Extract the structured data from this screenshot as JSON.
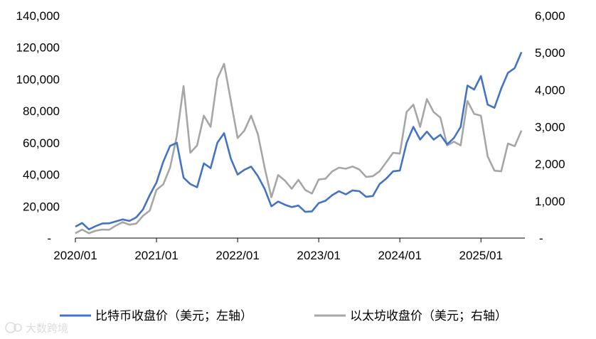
{
  "chart_data": {
    "type": "line",
    "title": "",
    "xlabel": "",
    "ylabel": "",
    "x_tick_labels": [
      "2020/01",
      "2021/01",
      "2022/01",
      "2023/01",
      "2024/01",
      "2025/01"
    ],
    "y_left": {
      "ylim": [
        0,
        140000
      ],
      "tick_labels": [
        "-",
        "20,000",
        "40,000",
        "60,000",
        "80,000",
        "100,000",
        "120,000",
        "140,000"
      ]
    },
    "y_right": {
      "ylim": [
        0,
        6000
      ],
      "tick_labels": [
        "-",
        "1,000",
        "2,000",
        "3,000",
        "4,000",
        "5,000",
        "6,000"
      ]
    },
    "grid": false,
    "legend_position": "bottom",
    "series": [
      {
        "name": "比特币收盘价（美元；左轴）",
        "axis": "left",
        "color": "#4472c4",
        "points": [
          [
            "2020-01",
            7200
          ],
          [
            "2020-02",
            9500
          ],
          [
            "2020-03",
            5500
          ],
          [
            "2020-04",
            7500
          ],
          [
            "2020-05",
            9200
          ],
          [
            "2020-06",
            9300
          ],
          [
            "2020-07",
            10500
          ],
          [
            "2020-08",
            11700
          ],
          [
            "2020-09",
            10800
          ],
          [
            "2020-10",
            13000
          ],
          [
            "2020-11",
            18000
          ],
          [
            "2020-12",
            27000
          ],
          [
            "2021-01",
            35000
          ],
          [
            "2021-02",
            48000
          ],
          [
            "2021-03",
            58000
          ],
          [
            "2021-04",
            60000
          ],
          [
            "2021-05",
            38000
          ],
          [
            "2021-06",
            34000
          ],
          [
            "2021-07",
            32000
          ],
          [
            "2021-08",
            47000
          ],
          [
            "2021-09",
            44000
          ],
          [
            "2021-10",
            60000
          ],
          [
            "2021-11",
            66000
          ],
          [
            "2021-12",
            50000
          ],
          [
            "2022-01",
            40000
          ],
          [
            "2022-02",
            43000
          ],
          [
            "2022-03",
            45000
          ],
          [
            "2022-04",
            39000
          ],
          [
            "2022-05",
            31000
          ],
          [
            "2022-06",
            20000
          ],
          [
            "2022-07",
            23000
          ],
          [
            "2022-08",
            21000
          ],
          [
            "2022-09",
            19500
          ],
          [
            "2022-10",
            20500
          ],
          [
            "2022-11",
            16500
          ],
          [
            "2022-12",
            16800
          ],
          [
            "2023-01",
            22000
          ],
          [
            "2023-02",
            23500
          ],
          [
            "2023-03",
            27000
          ],
          [
            "2023-04",
            29500
          ],
          [
            "2023-05",
            27500
          ],
          [
            "2023-06",
            30000
          ],
          [
            "2023-07",
            29500
          ],
          [
            "2023-08",
            26000
          ],
          [
            "2023-09",
            26500
          ],
          [
            "2023-10",
            34000
          ],
          [
            "2023-11",
            37500
          ],
          [
            "2023-12",
            42000
          ],
          [
            "2024-01",
            42500
          ],
          [
            "2024-02",
            60000
          ],
          [
            "2024-03",
            70000
          ],
          [
            "2024-04",
            62000
          ],
          [
            "2024-05",
            67000
          ],
          [
            "2024-06",
            62000
          ],
          [
            "2024-07",
            65000
          ],
          [
            "2024-08",
            59000
          ],
          [
            "2024-09",
            63000
          ],
          [
            "2024-10",
            70000
          ],
          [
            "2024-11",
            96000
          ],
          [
            "2024-12",
            93500
          ],
          [
            "2025-01",
            102000
          ],
          [
            "2025-02",
            84000
          ],
          [
            "2025-03",
            82000
          ],
          [
            "2025-04",
            94000
          ],
          [
            "2025-05",
            104000
          ],
          [
            "2025-06",
            107000
          ],
          [
            "2025-07",
            117000
          ]
        ]
      },
      {
        "name": "以太坊收盘价（美元；右轴）",
        "axis": "right",
        "color": "#a6a6a6",
        "points": [
          [
            "2020-01",
            130
          ],
          [
            "2020-02",
            230
          ],
          [
            "2020-03",
            130
          ],
          [
            "2020-04",
            200
          ],
          [
            "2020-05",
            230
          ],
          [
            "2020-06",
            225
          ],
          [
            "2020-07",
            340
          ],
          [
            "2020-08",
            430
          ],
          [
            "2020-09",
            360
          ],
          [
            "2020-10",
            390
          ],
          [
            "2020-11",
            600
          ],
          [
            "2020-12",
            740
          ],
          [
            "2021-01",
            1300
          ],
          [
            "2021-02",
            1450
          ],
          [
            "2021-03",
            1900
          ],
          [
            "2021-04",
            2750
          ],
          [
            "2021-05",
            4100
          ],
          [
            "2021-06",
            2300
          ],
          [
            "2021-07",
            2500
          ],
          [
            "2021-08",
            3300
          ],
          [
            "2021-09",
            3000
          ],
          [
            "2021-10",
            4300
          ],
          [
            "2021-11",
            4700
          ],
          [
            "2021-12",
            3700
          ],
          [
            "2022-01",
            2700
          ],
          [
            "2022-02",
            2900
          ],
          [
            "2022-03",
            3300
          ],
          [
            "2022-04",
            2800
          ],
          [
            "2022-05",
            1900
          ],
          [
            "2022-06",
            1100
          ],
          [
            "2022-07",
            1700
          ],
          [
            "2022-08",
            1550
          ],
          [
            "2022-09",
            1330
          ],
          [
            "2022-10",
            1570
          ],
          [
            "2022-11",
            1300
          ],
          [
            "2022-12",
            1200
          ],
          [
            "2023-01",
            1580
          ],
          [
            "2023-02",
            1600
          ],
          [
            "2023-03",
            1800
          ],
          [
            "2023-04",
            1900
          ],
          [
            "2023-05",
            1870
          ],
          [
            "2023-06",
            1930
          ],
          [
            "2023-07",
            1850
          ],
          [
            "2023-08",
            1650
          ],
          [
            "2023-09",
            1670
          ],
          [
            "2023-10",
            1800
          ],
          [
            "2023-11",
            2050
          ],
          [
            "2023-12",
            2300
          ],
          [
            "2024-01",
            2280
          ],
          [
            "2024-02",
            3400
          ],
          [
            "2024-03",
            3600
          ],
          [
            "2024-04",
            3000
          ],
          [
            "2024-05",
            3750
          ],
          [
            "2024-06",
            3400
          ],
          [
            "2024-07",
            3250
          ],
          [
            "2024-08",
            2500
          ],
          [
            "2024-09",
            2600
          ],
          [
            "2024-10",
            2500
          ],
          [
            "2024-11",
            3700
          ],
          [
            "2024-12",
            3350
          ],
          [
            "2025-01",
            3300
          ],
          [
            "2025-02",
            2200
          ],
          [
            "2025-03",
            1820
          ],
          [
            "2025-04",
            1800
          ],
          [
            "2025-05",
            2550
          ],
          [
            "2025-06",
            2480
          ],
          [
            "2025-07",
            2900
          ]
        ]
      }
    ]
  },
  "watermark": {
    "text": "大数跨境",
    "icon": "watermark-logo-icon"
  }
}
